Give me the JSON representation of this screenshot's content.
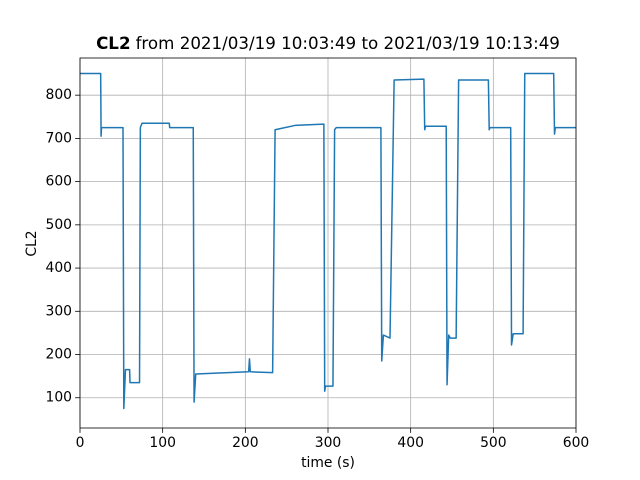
{
  "chart_data": {
    "type": "line",
    "title_bold": "CL2",
    "title": "from 2021/03/19 10:03:49 to 2021/03/19 10:13:49",
    "xlabel": "time (s)",
    "ylabel": "CL2",
    "xlim": [
      0,
      600
    ],
    "xticks": [
      0,
      100,
      200,
      300,
      400,
      500,
      600
    ],
    "ylim": [
      30,
      886
    ],
    "yticks": [
      100,
      200,
      300,
      400,
      500,
      600,
      700,
      800
    ],
    "grid": true,
    "x": [
      0,
      25,
      25.5,
      26,
      52,
      53,
      55,
      60,
      60.5,
      72,
      73,
      75,
      108,
      108.5,
      137,
      138,
      140,
      204,
      205,
      206,
      233,
      236,
      260,
      295,
      296,
      297,
      306,
      308,
      310,
      364,
      365,
      367,
      375,
      380,
      416,
      417,
      418,
      443,
      444,
      446,
      448,
      455,
      458,
      494,
      495,
      496,
      521,
      522,
      524,
      536,
      538,
      573,
      574,
      575,
      600
    ],
    "series": [
      {
        "color": "#1f77b4",
        "values": [
          850,
          850,
          705,
          725,
          725,
          75,
          165,
          165,
          135,
          135,
          725,
          735,
          735,
          725,
          725,
          90,
          155,
          160,
          190,
          160,
          158,
          720,
          730,
          733,
          115,
          127,
          127,
          720,
          725,
          725,
          185,
          245,
          238,
          835,
          837,
          720,
          728,
          728,
          130,
          245,
          238,
          238,
          835,
          835,
          720,
          725,
          725,
          222,
          248,
          248,
          850,
          850,
          710,
          725,
          725
        ]
      }
    ]
  }
}
